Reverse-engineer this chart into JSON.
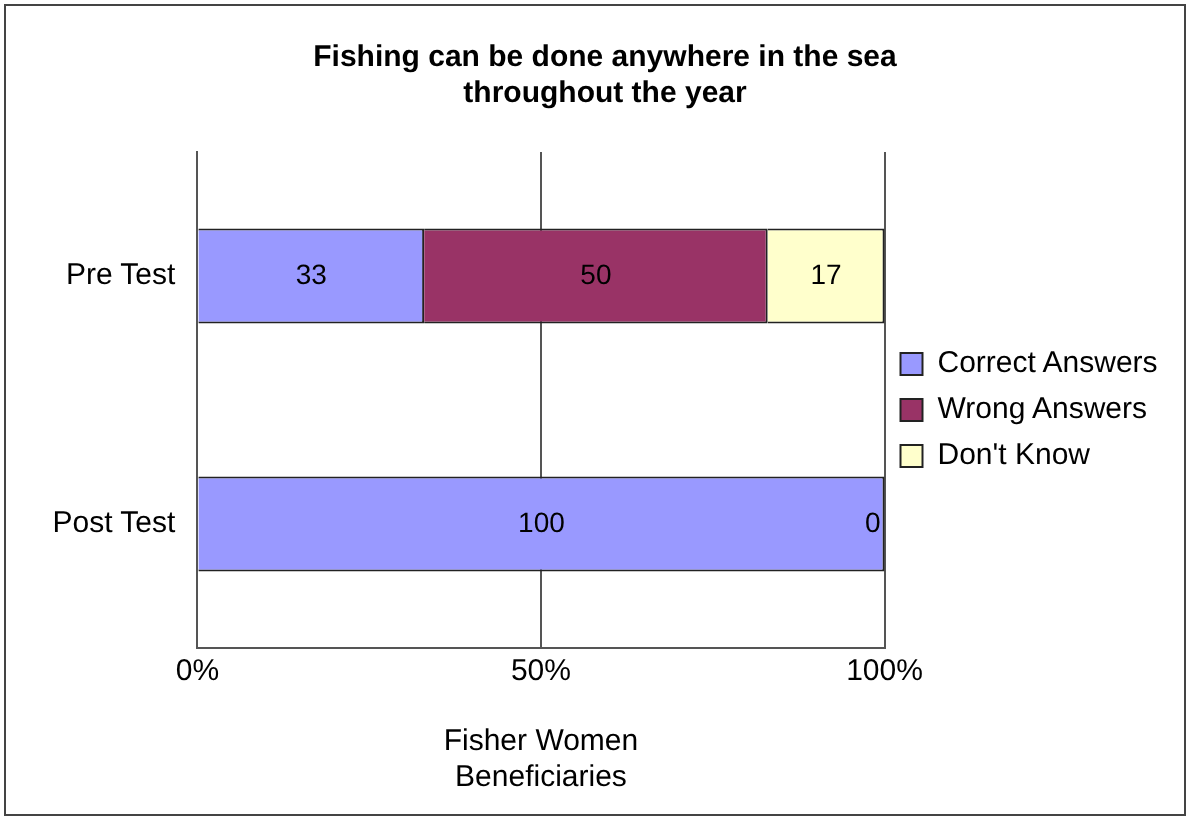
{
  "chart_data": {
    "type": "bar",
    "orientation": "horizontal",
    "stacked": true,
    "title": "Fishing can be done anywhere in the sea throughout the year",
    "xlabel": "Fisher Women Beneficiaries",
    "categories": [
      "Pre Test",
      "Post Test"
    ],
    "series": [
      {
        "name": "Correct Answers",
        "color": "#9999ff",
        "values": [
          33,
          100
        ],
        "value_labels": [
          "33",
          "100"
        ]
      },
      {
        "name": "Wrong Answers",
        "color": "#993366",
        "values": [
          50,
          0
        ],
        "value_labels": [
          "50",
          null
        ]
      },
      {
        "name": "Don't Know",
        "color": "#ffffcc",
        "values": [
          17,
          0
        ],
        "value_labels": [
          "17",
          "0"
        ]
      }
    ],
    "xlim": [
      0,
      100
    ],
    "xticks": [
      {
        "value": 0,
        "label": "0%"
      },
      {
        "value": 50,
        "label": "50%"
      },
      {
        "value": 100,
        "label": "100%"
      }
    ],
    "grid": "x",
    "legend": "right"
  }
}
